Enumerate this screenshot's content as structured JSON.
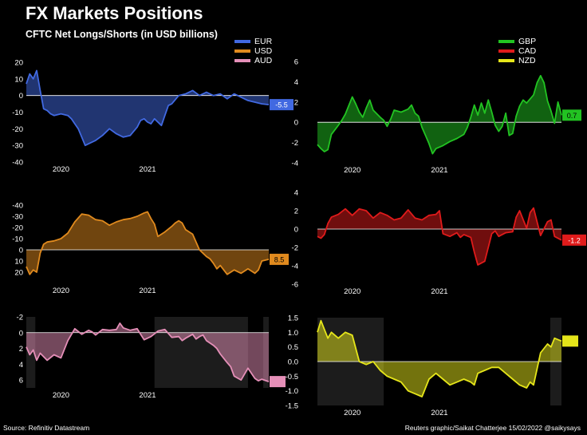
{
  "title": "FX Markets Positions",
  "subtitle": "CFTC Net Longs/Shorts (in USD billions)",
  "source": "Source: Refinitiv Datastream",
  "credit": "Reuters graphic/Saikat Chatterjee 15/02/2022 @saikysays",
  "legend_left": [
    {
      "name": "EUR",
      "color": "#4169e1"
    },
    {
      "name": "USD",
      "color": "#e08a1e"
    },
    {
      "name": "AUD",
      "color": "#e58fb8"
    }
  ],
  "legend_right": [
    {
      "name": "GBP",
      "color": "#22c322"
    },
    {
      "name": "CAD",
      "color": "#e01b1b"
    },
    {
      "name": "NZD",
      "color": "#e6e61a"
    }
  ],
  "chart_data": [
    {
      "type": "area",
      "id": "eur",
      "name": "EUR",
      "color": "#4169e1",
      "ylim": [
        20,
        -40
      ],
      "yticks": [
        -40,
        -30,
        -20,
        -10,
        0,
        10,
        20
      ],
      "yticklabels": [
        "-40",
        "-30",
        "-20",
        "-10",
        "0",
        "10",
        "20"
      ],
      "xticklabels": [
        "2020",
        "2021"
      ],
      "end_label": "-5.5",
      "label_text_color": "#ffffff",
      "x": [
        0,
        0.5,
        1,
        1.5,
        2,
        2.5,
        3,
        3.5,
        4,
        5,
        6,
        6.5,
        7,
        7.5,
        8,
        8.5,
        9,
        10,
        11,
        12,
        13,
        14,
        15,
        16,
        16.5,
        17,
        17.5,
        18,
        18.5,
        19,
        19.5,
        20,
        20.5,
        21,
        22,
        23,
        24,
        25,
        26,
        27,
        28,
        29,
        30,
        31,
        32,
        33,
        34,
        35
      ],
      "values": [
        7,
        13,
        10,
        15,
        3,
        -8,
        -9,
        -11,
        -12,
        -11,
        -12,
        -14,
        -17,
        -20,
        -25,
        -30,
        -29,
        -27,
        -24,
        -20,
        -23,
        -25,
        -24,
        -19,
        -15,
        -14,
        -16,
        -17,
        -14,
        -16,
        -18,
        -12,
        -6,
        -5,
        0,
        1,
        3,
        0,
        2,
        0,
        1,
        -2,
        1,
        -1,
        -3,
        -4,
        -5,
        -5.5
      ]
    },
    {
      "type": "area",
      "id": "gbp",
      "name": "GBP",
      "color": "#22c322",
      "ylim": [
        6,
        -4
      ],
      "yticks": [
        -4,
        -2,
        0,
        2,
        4,
        6
      ],
      "yticklabels": [
        "-4",
        "-2",
        "0",
        "2",
        "4",
        "6"
      ],
      "xticklabels": [
        "2020",
        "2021"
      ],
      "end_label": "0.7",
      "label_text_color": "#000000",
      "x": [
        0,
        0.5,
        1,
        1.5,
        2,
        3,
        3.5,
        4,
        5,
        5.5,
        6,
        6.5,
        7,
        7.5,
        8,
        9,
        9.5,
        10,
        10.5,
        11,
        12,
        13,
        13.5,
        14,
        14.5,
        15,
        15.5,
        16,
        16.5,
        17,
        18,
        19,
        20,
        21,
        21.5,
        22,
        22.5,
        23,
        23.5,
        24,
        24.5,
        25,
        25.5,
        26,
        26.5,
        27,
        27.5,
        28,
        28.5,
        29,
        29.5,
        30,
        31,
        31.5,
        32,
        32.5,
        33,
        33.5,
        34,
        34.5,
        35
      ],
      "values": [
        -2.2,
        -2.6,
        -2.9,
        -2.7,
        -1.2,
        -0.3,
        0.2,
        0.8,
        2.5,
        1.8,
        1.0,
        0.5,
        1.4,
        2.2,
        1.2,
        0.5,
        0.2,
        -0.4,
        0.3,
        1.2,
        1.0,
        1.3,
        1.7,
        0.9,
        0.6,
        -0.5,
        -1.3,
        -2.1,
        -3.1,
        -2.6,
        -2.3,
        -1.9,
        -1.6,
        -1.2,
        -0.5,
        0.5,
        1.7,
        0.7,
        1.9,
        0.9,
        2.2,
        1.0,
        -0.3,
        -0.9,
        -0.4,
        0.9,
        -1.3,
        -1.1,
        0.6,
        1.6,
        2.2,
        1.9,
        2.7,
        3.9,
        4.6,
        3.9,
        2.1,
        1.1,
        -0.1,
        2.0,
        0.7
      ]
    },
    {
      "type": "area",
      "id": "usd",
      "name": "USD",
      "color": "#e08a1e",
      "ylim": [
        -40,
        30
      ],
      "yticks": [
        -40,
        -30,
        -20,
        -10,
        0,
        10,
        20
      ],
      "yticklabels": [
        "-40",
        "-30",
        "-20",
        "-10",
        "0",
        "10",
        "20"
      ],
      "xticklabels": [
        "2020",
        "2021"
      ],
      "end_label": "8.5",
      "label_text_color": "#000000",
      "x": [
        0,
        0.5,
        1,
        1.5,
        2,
        2.5,
        3,
        4,
        5,
        6,
        7,
        8,
        9,
        10,
        11,
        12,
        13,
        14,
        15,
        16,
        17,
        17.5,
        18,
        18.5,
        19,
        20,
        21,
        21.5,
        22,
        22.5,
        23,
        24,
        25,
        26,
        26.5,
        27,
        27.5,
        28,
        29,
        30,
        31,
        32,
        33,
        33.5,
        34,
        35
      ],
      "values": [
        15,
        22,
        18,
        20,
        3,
        -5,
        -7,
        -8,
        -10,
        -15,
        -25,
        -32,
        -31,
        -27,
        -26,
        -22,
        -25,
        -27,
        -28,
        -30,
        -33,
        -34,
        -28,
        -23,
        -12,
        -16,
        -21,
        -24,
        -26,
        -24,
        -18,
        -14,
        0,
        6,
        8,
        12,
        17,
        14,
        22,
        18,
        21,
        17,
        21,
        18,
        10,
        8.5
      ]
    },
    {
      "type": "area",
      "id": "cad",
      "name": "CAD",
      "color": "#e01b1b",
      "ylim": [
        4,
        -6
      ],
      "yticks": [
        -6,
        -4,
        -2,
        0,
        2,
        4
      ],
      "yticklabels": [
        "-6",
        "-4",
        "-2",
        "0",
        "2",
        "4"
      ],
      "xticklabels": [
        "2020",
        "2021"
      ],
      "end_label": "-1.2",
      "label_text_color": "#ffffff",
      "x": [
        0,
        0.5,
        1,
        1.5,
        2,
        3,
        4,
        5,
        6,
        7,
        8,
        9,
        10,
        11,
        12,
        13,
        14,
        15,
        16,
        17,
        17.5,
        18,
        19,
        20,
        20.5,
        21,
        22,
        22.5,
        23,
        24,
        25,
        25.5,
        26,
        27,
        28,
        28.5,
        29,
        30,
        30.5,
        31,
        32,
        33,
        33.5,
        34,
        35
      ],
      "values": [
        -0.8,
        -1.0,
        -0.6,
        0.6,
        1.3,
        1.6,
        2.2,
        1.5,
        2.2,
        2.0,
        1.2,
        1.8,
        1.5,
        1.0,
        1.2,
        2.1,
        1.2,
        1.0,
        1.5,
        1.6,
        2.0,
        -0.5,
        -0.8,
        -0.4,
        -0.9,
        -0.6,
        -0.9,
        -2.5,
        -3.9,
        -3.5,
        -0.5,
        -0.2,
        -0.8,
        -0.4,
        -0.3,
        1.3,
        2.0,
        0.1,
        1.8,
        2.3,
        -0.7,
        0.8,
        1.0,
        -0.8,
        -1.2
      ]
    },
    {
      "type": "area",
      "id": "aud",
      "name": "AUD",
      "color": "#e58fb8",
      "ylim": [
        -2,
        7
      ],
      "yticks": [
        -2,
        0,
        2,
        4,
        6
      ],
      "yticklabels": [
        "-2",
        "0",
        "2",
        "4",
        "6"
      ],
      "xticklabels": [
        "2020",
        "2021"
      ],
      "end_label": "",
      "label_text_color": "#000000",
      "shade_x": [
        [
          0,
          1.3
        ],
        [
          18.5,
          32
        ],
        [
          34.2,
          35
        ]
      ],
      "x": [
        0,
        0.5,
        1,
        1.5,
        2,
        3,
        4,
        5,
        6,
        7,
        8,
        9,
        9.5,
        10,
        11,
        12,
        13,
        13.5,
        14,
        15,
        16,
        16.5,
        17,
        18,
        19,
        20,
        21,
        22,
        22.5,
        23,
        24,
        24.5,
        25,
        25.5,
        26,
        27,
        27.5,
        28,
        29,
        29.5,
        30,
        31,
        32,
        33,
        33.5,
        34,
        35
      ],
      "values": [
        1.8,
        2.8,
        2.2,
        3.5,
        2.6,
        3.5,
        2.8,
        3.2,
        1.0,
        -0.5,
        0.2,
        -0.3,
        -0.1,
        0.3,
        -0.4,
        -0.3,
        -0.4,
        -1.2,
        -0.6,
        -0.3,
        -0.5,
        0.2,
        0.9,
        0.5,
        -0.2,
        -0.4,
        0.6,
        0.5,
        1.0,
        0.7,
        0.2,
        0.8,
        0.5,
        0.3,
        1.0,
        1.6,
        2.0,
        2.7,
        3.8,
        4.3,
        5.5,
        6.0,
        4.5,
        5.8,
        6.1,
        5.9,
        6.2
      ]
    },
    {
      "type": "area",
      "id": "nzd",
      "name": "NZD",
      "color": "#e6e61a",
      "ylim": [
        1.5,
        -1.5
      ],
      "yticks": [
        1.5,
        1.0,
        0.5,
        0.0,
        -0.5,
        -1.0,
        -1.5
      ],
      "yticklabels": [
        "1.5",
        "1.0",
        "0.5",
        "0.0",
        "-0.5",
        "-1.0",
        "-1.5"
      ],
      "xticklabels": [
        "2020",
        "2021"
      ],
      "end_label": "",
      "label_text_color": "#000000",
      "shade_x": [
        [
          0,
          9.5
        ],
        [
          33.4,
          35
        ]
      ],
      "x": [
        0,
        0.5,
        1,
        1.5,
        2,
        3,
        4,
        5,
        6,
        7,
        8,
        9,
        10,
        11,
        12,
        13,
        14,
        15,
        16,
        17,
        18,
        19,
        20,
        21,
        22,
        22.5,
        23,
        24,
        25,
        26,
        27,
        28,
        29,
        30,
        30.5,
        31,
        32,
        33,
        33.5,
        34,
        35
      ],
      "values": [
        1.0,
        1.4,
        1.1,
        0.8,
        1.0,
        0.8,
        1.0,
        0.9,
        0.0,
        -0.1,
        0.0,
        -0.3,
        -0.5,
        -0.6,
        -0.7,
        -1.0,
        -1.1,
        -1.2,
        -0.6,
        -0.4,
        -0.6,
        -0.8,
        -0.7,
        -0.6,
        -0.7,
        -0.8,
        -0.4,
        -0.3,
        -0.2,
        -0.2,
        -0.4,
        -0.6,
        -0.8,
        -0.9,
        -0.7,
        -0.8,
        0.3,
        0.6,
        0.5,
        0.8,
        0.7
      ]
    }
  ]
}
